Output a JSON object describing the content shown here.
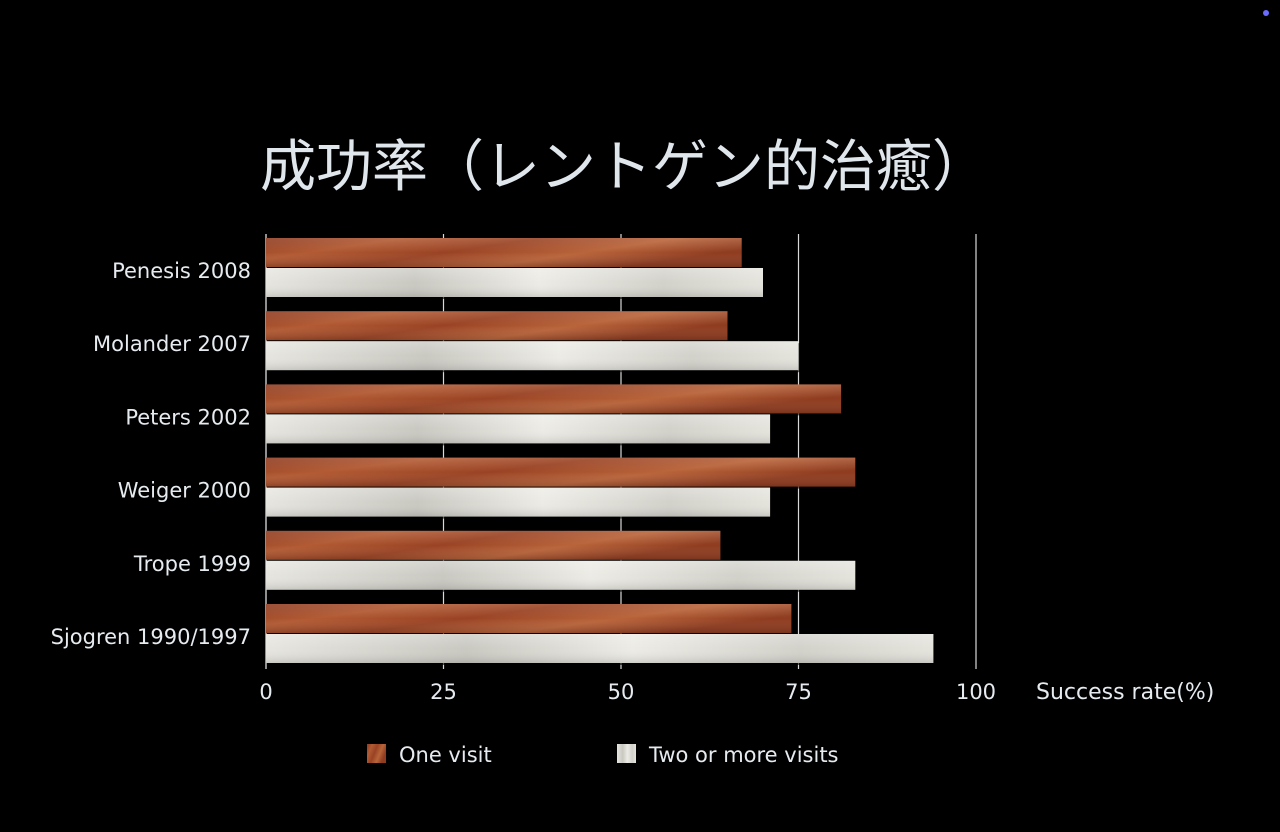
{
  "colors": {
    "background": "#000000",
    "text": "#e6ebf0",
    "one_visit": "#a0482a",
    "two_visits": "#d7d6cf",
    "gridline": "#d9d9d9"
  },
  "chart_data": {
    "type": "bar",
    "orientation": "horizontal",
    "title": "成功率（レントゲン的治癒）",
    "xlabel": "Success rate(%)",
    "ylabel": "",
    "xlim": [
      0,
      100
    ],
    "xticks": [
      "0",
      "25",
      "50",
      "75",
      "100"
    ],
    "grid": true,
    "legend_position": "bottom",
    "categories": [
      "Penesis 2008",
      "Molander 2007",
      "Peters 2002",
      "Weiger 2000",
      "Trope 1999",
      "Sjogren 1990/1997"
    ],
    "series": [
      {
        "name": "One visit",
        "values": [
          67,
          65,
          81,
          83,
          64,
          74
        ]
      },
      {
        "name": "Two or more visits",
        "values": [
          70,
          75,
          71,
          71,
          83,
          94
        ]
      }
    ]
  }
}
